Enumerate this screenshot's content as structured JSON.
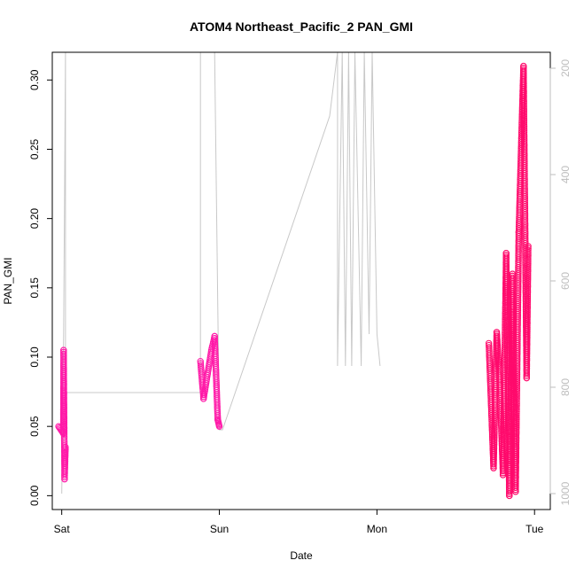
{
  "chart_data": {
    "type": "scatter",
    "title": "ATOM4 Northeast_Pacific_2 PAN_GMI",
    "xlabel": "Date",
    "ylabel": "PAN_GMI",
    "x_ticks": [
      {
        "label": "Sat",
        "value": 0
      },
      {
        "label": "Sun",
        "value": 1
      },
      {
        "label": "Mon",
        "value": 2
      },
      {
        "label": "Tue",
        "value": 3
      }
    ],
    "xlim": [
      -0.06,
      3.1
    ],
    "ylim": [
      -0.01,
      0.32
    ],
    "y_ticks": [
      0.0,
      0.05,
      0.1,
      0.15,
      0.2,
      0.25,
      0.3
    ],
    "y_tick_labels": [
      "0.00",
      "0.05",
      "0.10",
      "0.15",
      "0.20",
      "0.25",
      "0.30"
    ],
    "y2_ticks": [
      200,
      400,
      600,
      800,
      1000
    ],
    "y2_tick_labels": [
      "200",
      "400",
      "600",
      "800",
      "1000"
    ],
    "y2lim": [
      1030,
      170
    ],
    "colors": {
      "marker_day1": "#ff1aa8",
      "marker_late": "#ff0a6c",
      "pressure_line": "#c8c8c8"
    },
    "pressure_line": [
      [
        0.0,
        1000
      ],
      [
        0.012,
        700
      ],
      [
        0.02,
        350
      ],
      [
        0.024,
        160
      ],
      [
        0.024,
        810
      ],
      [
        0.88,
        810
      ],
      [
        0.88,
        170
      ],
      [
        0.9,
        170
      ],
      [
        0.9,
        160
      ],
      [
        0.95,
        160
      ],
      [
        0.96,
        170
      ],
      [
        0.97,
        170
      ],
      [
        1.0,
        880
      ],
      [
        1.02,
        880
      ],
      [
        1.7,
        290
      ],
      [
        1.75,
        150
      ],
      [
        1.75,
        760
      ],
      [
        1.78,
        150
      ],
      [
        1.8,
        760
      ],
      [
        1.82,
        150
      ],
      [
        1.84,
        760
      ],
      [
        1.86,
        150
      ],
      [
        1.9,
        760
      ],
      [
        1.92,
        150
      ],
      [
        1.95,
        700
      ],
      [
        1.97,
        150
      ],
      [
        2.0,
        700
      ],
      [
        2.02,
        760
      ]
    ],
    "series": [
      {
        "group": "sat",
        "color_key": "marker_day1",
        "segments": [
          {
            "x0": -0.02,
            "x1": 0.01,
            "y0": 0.05,
            "y1": 0.045
          },
          {
            "x0": 0.01,
            "x1": 0.012,
            "y0": 0.045,
            "y1": 0.105
          },
          {
            "x0": 0.012,
            "x1": 0.018,
            "y0": 0.105,
            "y1": 0.012
          },
          {
            "x0": 0.018,
            "x1": 0.024,
            "y0": 0.012,
            "y1": 0.035
          }
        ]
      },
      {
        "group": "sun",
        "color_key": "marker_day1",
        "segments": [
          {
            "x0": 0.88,
            "x1": 0.9,
            "y0": 0.097,
            "y1": 0.07
          },
          {
            "x0": 0.9,
            "x1": 0.95,
            "y0": 0.07,
            "y1": 0.105
          },
          {
            "x0": 0.95,
            "x1": 0.97,
            "y0": 0.105,
            "y1": 0.115
          },
          {
            "x0": 0.97,
            "x1": 0.99,
            "y0": 0.115,
            "y1": 0.055
          },
          {
            "x0": 0.99,
            "x1": 1.0,
            "y0": 0.055,
            "y1": 0.05
          }
        ]
      },
      {
        "group": "tue",
        "color_key": "marker_late",
        "segments": [
          {
            "x0": 2.71,
            "x1": 2.74,
            "y0": 0.11,
            "y1": 0.02
          },
          {
            "x0": 2.74,
            "x1": 2.76,
            "y0": 0.02,
            "y1": 0.118
          },
          {
            "x0": 2.76,
            "x1": 2.78,
            "y0": 0.118,
            "y1": 0.08
          },
          {
            "x0": 2.78,
            "x1": 2.8,
            "y0": 0.08,
            "y1": 0.015
          },
          {
            "x0": 2.8,
            "x1": 2.82,
            "y0": 0.015,
            "y1": 0.175
          },
          {
            "x0": 2.82,
            "x1": 2.84,
            "y0": 0.175,
            "y1": 0.0
          },
          {
            "x0": 2.84,
            "x1": 2.86,
            "y0": 0.0,
            "y1": 0.16
          },
          {
            "x0": 2.86,
            "x1": 2.88,
            "y0": 0.16,
            "y1": 0.003
          },
          {
            "x0": 2.88,
            "x1": 2.9,
            "y0": 0.003,
            "y1": 0.19
          },
          {
            "x0": 2.9,
            "x1": 2.93,
            "y0": 0.19,
            "y1": 0.31
          },
          {
            "x0": 2.93,
            "x1": 2.95,
            "y0": 0.31,
            "y1": 0.085
          },
          {
            "x0": 2.95,
            "x1": 2.96,
            "y0": 0.085,
            "y1": 0.18
          }
        ]
      }
    ]
  }
}
